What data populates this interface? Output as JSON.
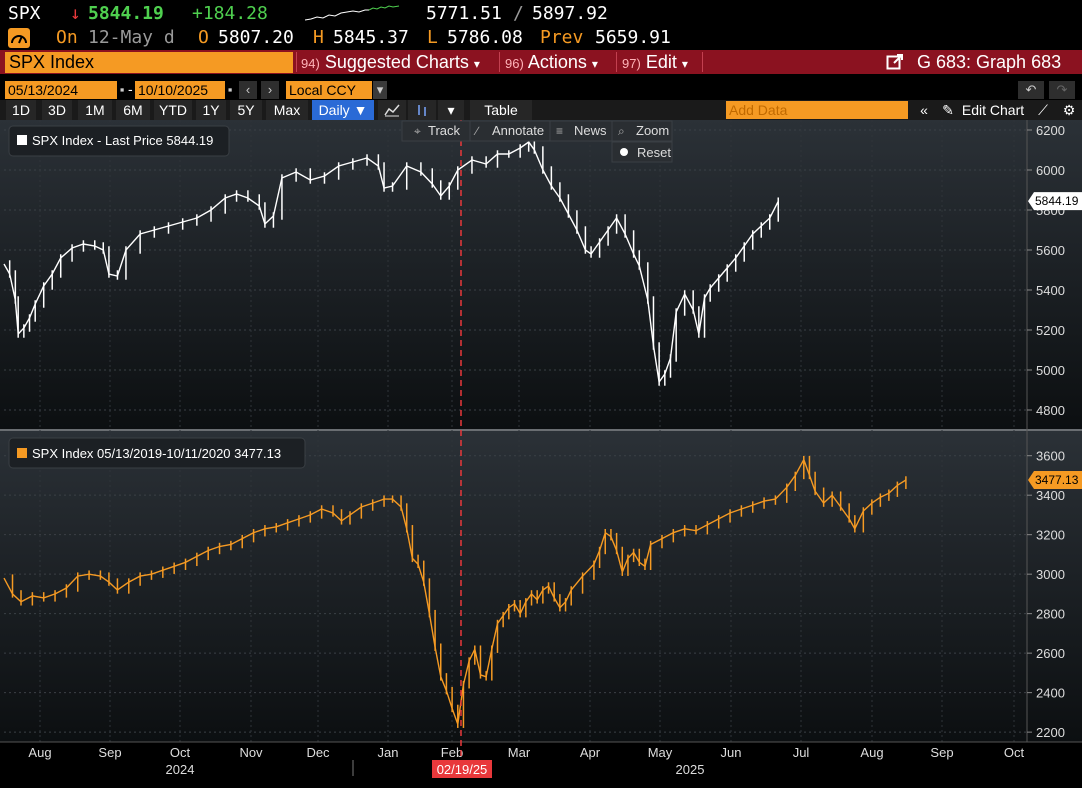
{
  "quote": {
    "ticker": "SPX",
    "arrow": "↓",
    "last": "5844.19",
    "change": "+184.28",
    "range_low": "5771.51",
    "range_sep": "/",
    "range_high": "5897.92",
    "on_label": "On",
    "on_date": "12-May d",
    "open_label": "O",
    "open": "5807.20",
    "high_label": "H",
    "high": "5845.37",
    "low_label": "L",
    "low": "5786.08",
    "prev_label": "Prev",
    "prev": "5659.91"
  },
  "menubar": {
    "ticker_field": "SPX Index",
    "items": [
      {
        "num": "94)",
        "label": "Suggested Charts",
        "caret": "▾"
      },
      {
        "num": "96)",
        "label": "Actions",
        "caret": "▾"
      },
      {
        "num": "97)",
        "label": "Edit",
        "caret": "▾"
      }
    ],
    "graph_label": "G 683: Graph 683"
  },
  "daterow": {
    "start": "05/13/2024",
    "dash": "-",
    "end": "10/10/2025",
    "ccy": "Local CCY"
  },
  "rangerow": {
    "ranges": [
      "1D",
      "3D",
      "1M",
      "6M",
      "YTD",
      "1Y",
      "5Y",
      "Max"
    ],
    "period": "Daily ▼",
    "table_label": "Table",
    "add_data_placeholder": "Add Data",
    "edit_chart": "Edit Chart"
  },
  "toolbar": {
    "track": "Track",
    "annotate": "Annotate",
    "news": "News",
    "zoom": "Zoom",
    "reset": "Reset"
  },
  "colors": {
    "top_series": "#ffffff",
    "bottom_series": "#f59a23",
    "marker": "#e8383b",
    "menubar": "#8b1220",
    "accent": "#f59a23"
  },
  "chart_data": [
    {
      "type": "line",
      "legend": "SPX Index - Last Price 5844.19",
      "last_value_label": "5844.19",
      "last_value": 5844.19,
      "ylim": [
        4700,
        6250
      ],
      "yticks": [
        4800,
        5000,
        5200,
        5400,
        5600,
        5800,
        6000,
        6200
      ],
      "x_index_range": [
        0,
        360
      ],
      "series": [
        {
          "name": "SPX Index - Last Price",
          "points": [
            [
              0,
              5530
            ],
            [
              2,
              5480
            ],
            [
              4,
              5350
            ],
            [
              5,
              5180
            ],
            [
              7,
              5210
            ],
            [
              9,
              5260
            ],
            [
              11,
              5330
            ],
            [
              14,
              5420
            ],
            [
              17,
              5480
            ],
            [
              20,
              5560
            ],
            [
              24,
              5610
            ],
            [
              28,
              5630
            ],
            [
              32,
              5620
            ],
            [
              35,
              5600
            ],
            [
              37,
              5480
            ],
            [
              40,
              5470
            ],
            [
              43,
              5600
            ],
            [
              48,
              5680
            ],
            [
              53,
              5700
            ],
            [
              58,
              5720
            ],
            [
              63,
              5740
            ],
            [
              68,
              5760
            ],
            [
              73,
              5800
            ],
            [
              78,
              5860
            ],
            [
              82,
              5880
            ],
            [
              86,
              5860
            ],
            [
              90,
              5820
            ],
            [
              92,
              5730
            ],
            [
              95,
              5770
            ],
            [
              98,
              5960
            ],
            [
              103,
              5990
            ],
            [
              108,
              5950
            ],
            [
              113,
              5970
            ],
            [
              118,
              6020
            ],
            [
              123,
              6040
            ],
            [
              128,
              6060
            ],
            [
              132,
              6020
            ],
            [
              134,
              5910
            ],
            [
              137,
              5920
            ],
            [
              142,
              6020
            ],
            [
              147,
              5990
            ],
            [
              151,
              5930
            ],
            [
              154,
              5870
            ],
            [
              157,
              5920
            ],
            [
              160,
              6000
            ],
            [
              165,
              6050
            ],
            [
              170,
              6030
            ],
            [
              174,
              6080
            ],
            [
              178,
              6080
            ],
            [
              182,
              6110
            ],
            [
              185,
              6140
            ],
            [
              187,
              6100
            ],
            [
              190,
              6000
            ],
            [
              193,
              5920
            ],
            [
              196,
              5860
            ],
            [
              199,
              5780
            ],
            [
              202,
              5700
            ],
            [
              205,
              5600
            ],
            [
              207,
              5580
            ],
            [
              210,
              5640
            ],
            [
              213,
              5700
            ],
            [
              216,
              5760
            ],
            [
              219,
              5680
            ],
            [
              222,
              5580
            ],
            [
              224,
              5520
            ],
            [
              227,
              5350
            ],
            [
              229,
              5120
            ],
            [
              231,
              4940
            ],
            [
              233,
              4980
            ],
            [
              235,
              5060
            ],
            [
              237,
              5290
            ],
            [
              240,
              5380
            ],
            [
              243,
              5300
            ],
            [
              245,
              5180
            ],
            [
              247,
              5360
            ],
            [
              249,
              5410
            ],
            [
              252,
              5460
            ],
            [
              255,
              5510
            ],
            [
              258,
              5560
            ],
            [
              261,
              5620
            ],
            [
              264,
              5680
            ],
            [
              267,
              5720
            ],
            [
              270,
              5760
            ],
            [
              273,
              5844
            ]
          ]
        }
      ]
    },
    {
      "type": "line",
      "legend": "SPX Index 05/13/2019-10/11/2020 3477.13",
      "last_value_label": "3477.13",
      "last_value": 3477.13,
      "ylim": [
        2150,
        3720
      ],
      "yticks": [
        2200,
        2400,
        2600,
        2800,
        3000,
        3200,
        3400,
        3600
      ],
      "x_index_range": [
        0,
        360
      ],
      "series": [
        {
          "name": "SPX Index 05/13/2019-10/11/2020",
          "points": [
            [
              0,
              2980
            ],
            [
              3,
              2900
            ],
            [
              6,
              2860
            ],
            [
              10,
              2890
            ],
            [
              14,
              2880
            ],
            [
              18,
              2900
            ],
            [
              22,
              2930
            ],
            [
              26,
              2990
            ],
            [
              30,
              3000
            ],
            [
              34,
              2990
            ],
            [
              37,
              2960
            ],
            [
              40,
              2920
            ],
            [
              44,
              2960
            ],
            [
              48,
              2990
            ],
            [
              52,
              3000
            ],
            [
              56,
              3020
            ],
            [
              60,
              3040
            ],
            [
              64,
              3060
            ],
            [
              68,
              3090
            ],
            [
              72,
              3120
            ],
            [
              76,
              3140
            ],
            [
              80,
              3150
            ],
            [
              84,
              3180
            ],
            [
              88,
              3210
            ],
            [
              92,
              3230
            ],
            [
              96,
              3240
            ],
            [
              100,
              3260
            ],
            [
              104,
              3280
            ],
            [
              108,
              3300
            ],
            [
              112,
              3330
            ],
            [
              116,
              3310
            ],
            [
              119,
              3270
            ],
            [
              122,
              3300
            ],
            [
              126,
              3340
            ],
            [
              130,
              3360
            ],
            [
              134,
              3380
            ],
            [
              137,
              3380
            ],
            [
              140,
              3340
            ],
            [
              142,
              3230
            ],
            [
              144,
              3080
            ],
            [
              146,
              3050
            ],
            [
              148,
              2960
            ],
            [
              150,
              2800
            ],
            [
              152,
              2630
            ],
            [
              154,
              2480
            ],
            [
              156,
              2410
            ],
            [
              158,
              2320
            ],
            [
              160,
              2240
            ],
            [
              162,
              2440
            ],
            [
              164,
              2560
            ],
            [
              166,
              2620
            ],
            [
              168,
              2490
            ],
            [
              170,
              2480
            ],
            [
              172,
              2620
            ],
            [
              174,
              2750
            ],
            [
              176,
              2790
            ],
            [
              178,
              2830
            ],
            [
              180,
              2850
            ],
            [
              182,
              2800
            ],
            [
              184,
              2860
            ],
            [
              186,
              2900
            ],
            [
              188,
              2870
            ],
            [
              190,
              2920
            ],
            [
              192,
              2940
            ],
            [
              194,
              2880
            ],
            [
              196,
              2830
            ],
            [
              198,
              2860
            ],
            [
              200,
              2920
            ],
            [
              204,
              2990
            ],
            [
              208,
              3050
            ],
            [
              210,
              3120
            ],
            [
              212,
              3210
            ],
            [
              214,
              3190
            ],
            [
              216,
              3120
            ],
            [
              218,
              3010
            ],
            [
              220,
              3080
            ],
            [
              222,
              3110
            ],
            [
              224,
              3060
            ],
            [
              226,
              3040
            ],
            [
              228,
              3150
            ],
            [
              232,
              3180
            ],
            [
              236,
              3210
            ],
            [
              240,
              3230
            ],
            [
              244,
              3220
            ],
            [
              248,
              3250
            ],
            [
              252,
              3280
            ],
            [
              256,
              3310
            ],
            [
              260,
              3330
            ],
            [
              264,
              3350
            ],
            [
              268,
              3370
            ],
            [
              272,
              3380
            ],
            [
              276,
              3440
            ],
            [
              279,
              3500
            ],
            [
              282,
              3580
            ],
            [
              284,
              3500
            ],
            [
              286,
              3420
            ],
            [
              289,
              3360
            ],
            [
              292,
              3400
            ],
            [
              295,
              3340
            ],
            [
              298,
              3280
            ],
            [
              300,
              3230
            ],
            [
              303,
              3320
            ],
            [
              306,
              3360
            ],
            [
              309,
              3390
            ],
            [
              312,
              3410
            ],
            [
              315,
              3450
            ],
            [
              318,
              3477
            ]
          ]
        }
      ]
    }
  ],
  "xaxis": {
    "months": [
      "Aug",
      "Sep",
      "Oct",
      "Nov",
      "Dec",
      "Jan",
      "Feb",
      "Mar",
      "Apr",
      "May",
      "Jun",
      "Jul",
      "Aug",
      "Sep",
      "Oct"
    ],
    "years": [
      "2024",
      "2025"
    ],
    "marker_label": "02/19/25"
  }
}
